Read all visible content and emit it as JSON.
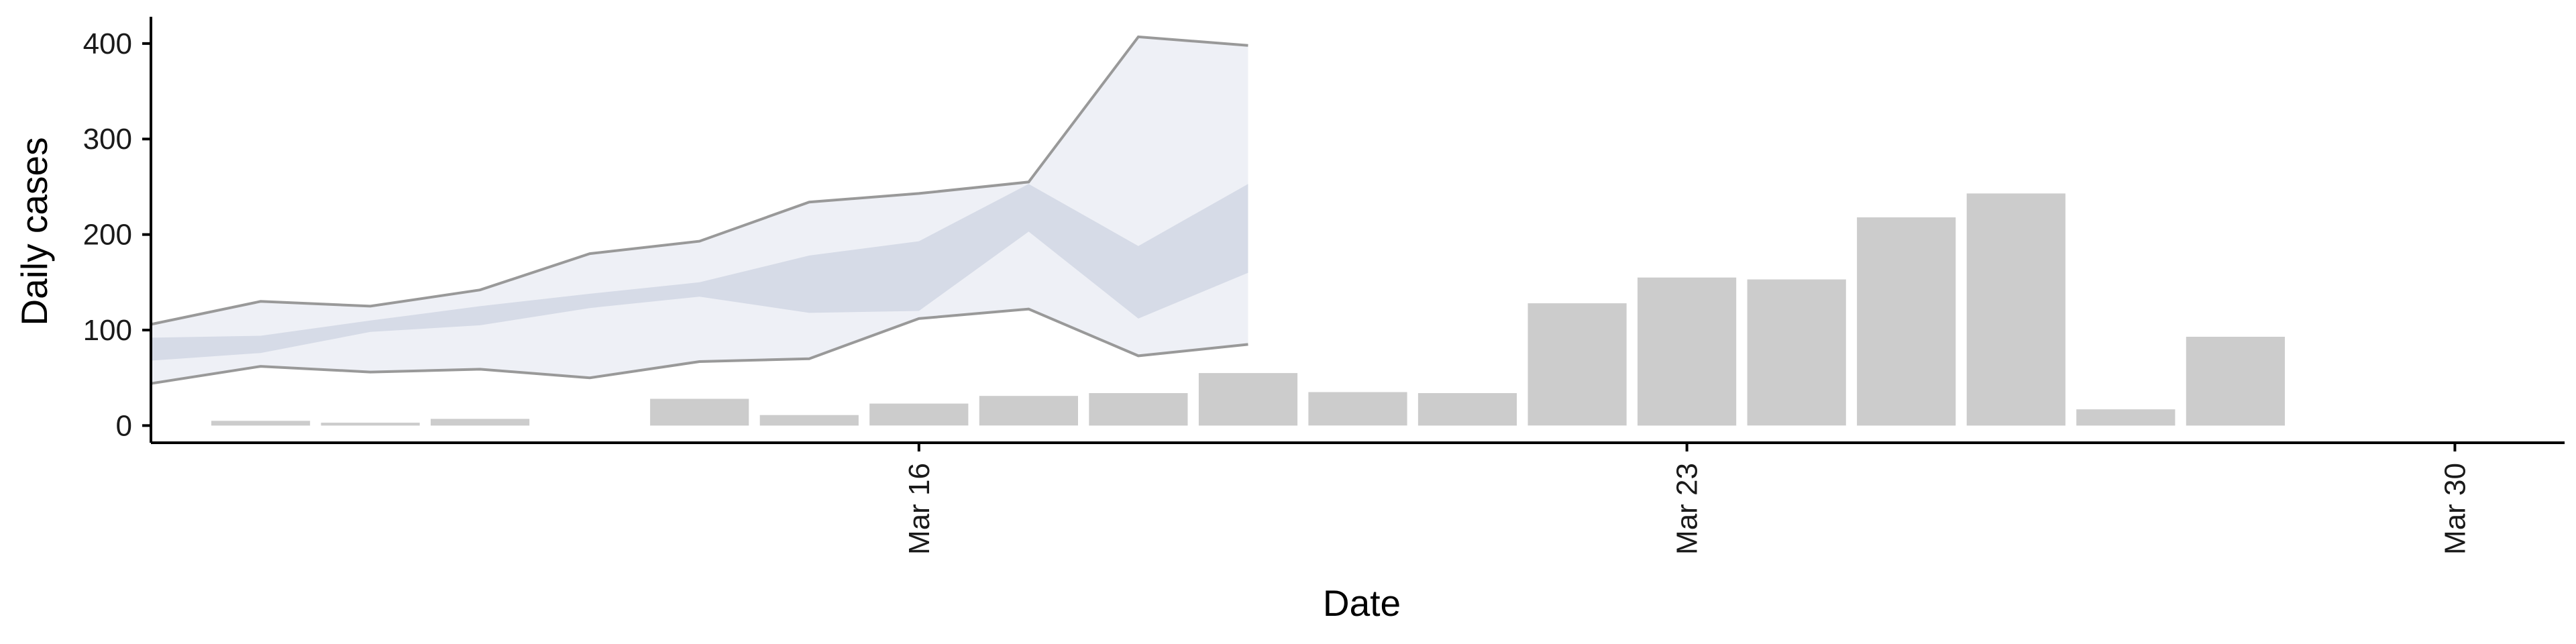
{
  "chart_data": {
    "type": "bar",
    "xlabel": "Date",
    "ylabel": "Daily cases",
    "ylim": [
      -18,
      428
    ],
    "yticks": [
      0,
      100,
      200,
      300,
      400
    ],
    "x_range": [
      "2020-03-09",
      "2020-03-31"
    ],
    "xticks": [
      {
        "date": "2020-03-16",
        "label": "Mar 16"
      },
      {
        "date": "2020-03-23",
        "label": "Mar 23"
      },
      {
        "date": "2020-03-30",
        "label": "Mar 30"
      }
    ],
    "bars": [
      {
        "date": "2020-03-10",
        "value": 5
      },
      {
        "date": "2020-03-11",
        "value": 3
      },
      {
        "date": "2020-03-12",
        "value": 7
      },
      {
        "date": "2020-03-14",
        "value": 28
      },
      {
        "date": "2020-03-15",
        "value": 11
      },
      {
        "date": "2020-03-16",
        "value": 23
      },
      {
        "date": "2020-03-17",
        "value": 31
      },
      {
        "date": "2020-03-18",
        "value": 34
      },
      {
        "date": "2020-03-19",
        "value": 55
      },
      {
        "date": "2020-03-20",
        "value": 35
      },
      {
        "date": "2020-03-21",
        "value": 34
      },
      {
        "date": "2020-03-22",
        "value": 128
      },
      {
        "date": "2020-03-23",
        "value": 155
      },
      {
        "date": "2020-03-24",
        "value": 153
      },
      {
        "date": "2020-03-25",
        "value": 218
      },
      {
        "date": "2020-03-26",
        "value": 243
      },
      {
        "date": "2020-03-27",
        "value": 17
      },
      {
        "date": "2020-03-28",
        "value": 93
      }
    ],
    "estimate_bands": {
      "dates": [
        "2020-03-09",
        "2020-03-10",
        "2020-03-11",
        "2020-03-12",
        "2020-03-13",
        "2020-03-14",
        "2020-03-15",
        "2020-03-16",
        "2020-03-17",
        "2020-03-18",
        "2020-03-19",
        "2020-03-20"
      ],
      "outer_upper": [
        106,
        130,
        125,
        142,
        180,
        193,
        234,
        243,
        255,
        407,
        398,
        null
      ],
      "outer_lower": [
        44,
        62,
        56,
        59,
        50,
        67,
        70,
        112,
        122,
        73,
        85,
        null
      ],
      "inner_upper": [
        92,
        94,
        110,
        125,
        138,
        150,
        178,
        193,
        253,
        188,
        253,
        null
      ],
      "inner_lower": [
        68,
        76,
        98,
        105,
        123,
        135,
        118,
        120,
        203,
        112,
        160,
        null
      ]
    },
    "colors": {
      "bars": "#cccccc",
      "outer_band": "#eef0f6",
      "inner_band": "#d6dbe7",
      "outer_line": "#999999",
      "axis": "#000000"
    },
    "grid": false,
    "legend": "none"
  }
}
